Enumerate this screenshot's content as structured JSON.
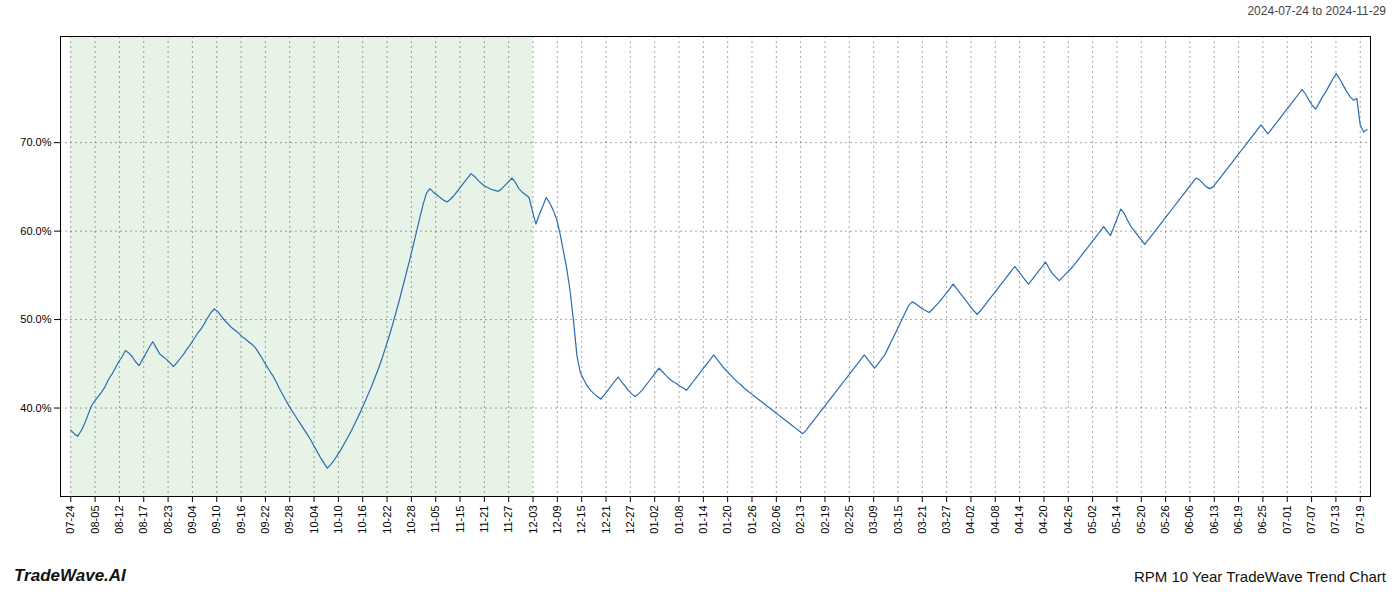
{
  "chart_data": {
    "type": "line",
    "title": "RPM 10 Year TradeWave Trend Chart",
    "subtitle": "2024-07-24 to 2024-11-29",
    "annotations": [
      {
        "text": "TradeWave.AI"
      }
    ],
    "color": "#2b6cb0",
    "grid": true,
    "xlim": [
      -3,
      380
    ],
    "xticks": [
      {
        "value": 0,
        "label": "07-24"
      },
      {
        "value": 7.1132,
        "label": "08-05"
      },
      {
        "value": 14.2264,
        "label": "08-12"
      },
      {
        "value": 21.3396,
        "label": "08-17"
      },
      {
        "value": 28.4528,
        "label": "08-23"
      },
      {
        "value": 35.566,
        "label": "09-04"
      },
      {
        "value": 42.6792,
        "label": "09-10"
      },
      {
        "value": 49.7925,
        "label": "09-16"
      },
      {
        "value": 56.9057,
        "label": "09-22"
      },
      {
        "value": 64.0189,
        "label": "09-28"
      },
      {
        "value": 71.1321,
        "label": "10-04"
      },
      {
        "value": 78.2453,
        "label": "10-10"
      },
      {
        "value": 85.3585,
        "label": "10-16"
      },
      {
        "value": 92.4717,
        "label": "10-22"
      },
      {
        "value": 99.5849,
        "label": "10-28"
      },
      {
        "value": 106.6981,
        "label": "11-05"
      },
      {
        "value": 113.8113,
        "label": "11-15"
      },
      {
        "value": 120.9245,
        "label": "11-21"
      },
      {
        "value": 128.0377,
        "label": "11-27"
      },
      {
        "value": 135.1509,
        "label": "12-03"
      },
      {
        "value": 142.2642,
        "label": "12-09"
      },
      {
        "value": 149.3774,
        "label": "12-15"
      },
      {
        "value": 156.4906,
        "label": "12-21"
      },
      {
        "value": 163.6038,
        "label": "12-27"
      },
      {
        "value": 170.717,
        "label": "01-02"
      },
      {
        "value": 177.8302,
        "label": "01-08"
      },
      {
        "value": 184.9434,
        "label": "01-14"
      },
      {
        "value": 192.0566,
        "label": "01-20"
      },
      {
        "value": 199.1698,
        "label": "01-26"
      },
      {
        "value": 206.283,
        "label": "02-06"
      },
      {
        "value": 213.3962,
        "label": "02-13"
      },
      {
        "value": 220.5094,
        "label": "02-19"
      },
      {
        "value": 227.6226,
        "label": "02-25"
      },
      {
        "value": 234.7358,
        "label": "03-09"
      },
      {
        "value": 241.8491,
        "label": "03-15"
      },
      {
        "value": 248.9623,
        "label": "03-21"
      },
      {
        "value": 256.0755,
        "label": "03-27"
      },
      {
        "value": 263.1887,
        "label": "04-02"
      },
      {
        "value": 270.3019,
        "label": "04-08"
      },
      {
        "value": 277.4151,
        "label": "04-14"
      },
      {
        "value": 284.5283,
        "label": "04-20"
      },
      {
        "value": 291.6415,
        "label": "04-26"
      },
      {
        "value": 298.7547,
        "label": "05-02"
      },
      {
        "value": 305.8679,
        "label": "05-14"
      },
      {
        "value": 312.9811,
        "label": "05-20"
      },
      {
        "value": 320.0943,
        "label": "05-26"
      },
      {
        "value": 327.2075,
        "label": "06-06"
      },
      {
        "value": 334.3208,
        "label": "06-13"
      },
      {
        "value": 341.434,
        "label": "06-19"
      },
      {
        "value": 348.5472,
        "label": "06-25"
      },
      {
        "value": 355.6604,
        "label": "07-01"
      },
      {
        "value": 362.7736,
        "label": "07-07"
      },
      {
        "value": 369.8868,
        "label": "07-13"
      },
      {
        "value": 377,
        "label": "07-19"
      }
    ],
    "ylim": [
      0.3,
      0.82
    ],
    "yticks": [
      {
        "value": 0.4,
        "label": "40.0%"
      },
      {
        "value": 0.5,
        "label": "50.0%"
      },
      {
        "value": 0.6,
        "label": "60.0%"
      },
      {
        "value": 0.7,
        "label": "70.0%"
      }
    ],
    "shaded_range": [
      0,
      135.1509
    ],
    "shade_color": "#d4ead4",
    "values": [
      0.375,
      0.371,
      0.368,
      0.374,
      0.382,
      0.392,
      0.402,
      0.408,
      0.413,
      0.418,
      0.424,
      0.432,
      0.438,
      0.445,
      0.452,
      0.458,
      0.465,
      0.462,
      0.458,
      0.452,
      0.448,
      0.455,
      0.462,
      0.469,
      0.475,
      0.468,
      0.461,
      0.458,
      0.455,
      0.451,
      0.447,
      0.451,
      0.456,
      0.461,
      0.467,
      0.472,
      0.478,
      0.484,
      0.489,
      0.495,
      0.502,
      0.508,
      0.512,
      0.509,
      0.504,
      0.499,
      0.495,
      0.491,
      0.488,
      0.485,
      0.481,
      0.478,
      0.475,
      0.472,
      0.468,
      0.462,
      0.456,
      0.449,
      0.443,
      0.437,
      0.43,
      0.422,
      0.415,
      0.408,
      0.401,
      0.395,
      0.389,
      0.383,
      0.377,
      0.371,
      0.365,
      0.358,
      0.351,
      0.344,
      0.338,
      0.332,
      0.336,
      0.341,
      0.347,
      0.353,
      0.36,
      0.367,
      0.374,
      0.382,
      0.39,
      0.398,
      0.407,
      0.416,
      0.425,
      0.435,
      0.445,
      0.456,
      0.468,
      0.48,
      0.493,
      0.507,
      0.521,
      0.536,
      0.551,
      0.566,
      0.582,
      0.598,
      0.614,
      0.63,
      0.643,
      0.648,
      0.644,
      0.641,
      0.638,
      0.635,
      0.633,
      0.636,
      0.64,
      0.645,
      0.65,
      0.655,
      0.66,
      0.665,
      0.662,
      0.658,
      0.654,
      0.651,
      0.649,
      0.647,
      0.646,
      0.645,
      0.648,
      0.652,
      0.656,
      0.66,
      0.655,
      0.648,
      0.644,
      0.641,
      0.638,
      0.622,
      0.608,
      0.619,
      0.628,
      0.638,
      0.632,
      0.624,
      0.614,
      0.598,
      0.578,
      0.558,
      0.532,
      0.498,
      0.459,
      0.44,
      0.432,
      0.425,
      0.42,
      0.416,
      0.413,
      0.41,
      0.415,
      0.42,
      0.425,
      0.43,
      0.435,
      0.43,
      0.425,
      0.42,
      0.416,
      0.413,
      0.416,
      0.42,
      0.425,
      0.43,
      0.435,
      0.44,
      0.445,
      0.441,
      0.437,
      0.433,
      0.43,
      0.428,
      0.425,
      0.423,
      0.42,
      0.425,
      0.43,
      0.435,
      0.44,
      0.445,
      0.45,
      0.455,
      0.46,
      0.455,
      0.45,
      0.445,
      0.441,
      0.437,
      0.433,
      0.429,
      0.426,
      0.422,
      0.419,
      0.416,
      0.413,
      0.41,
      0.407,
      0.404,
      0.401,
      0.398,
      0.395,
      0.392,
      0.389,
      0.386,
      0.383,
      0.38,
      0.377,
      0.374,
      0.371,
      0.375,
      0.38,
      0.385,
      0.39,
      0.395,
      0.4,
      0.405,
      0.41,
      0.415,
      0.42,
      0.425,
      0.43,
      0.435,
      0.44,
      0.445,
      0.45,
      0.455,
      0.46,
      0.455,
      0.45,
      0.445,
      0.45,
      0.455,
      0.46,
      0.468,
      0.476,
      0.484,
      0.492,
      0.5,
      0.508,
      0.516,
      0.52,
      0.518,
      0.515,
      0.512,
      0.51,
      0.508,
      0.512,
      0.516,
      0.52,
      0.525,
      0.53,
      0.535,
      0.54,
      0.535,
      0.53,
      0.525,
      0.52,
      0.515,
      0.51,
      0.506,
      0.51,
      0.515,
      0.52,
      0.525,
      0.53,
      0.535,
      0.54,
      0.545,
      0.55,
      0.555,
      0.56,
      0.555,
      0.55,
      0.545,
      0.54,
      0.545,
      0.55,
      0.555,
      0.56,
      0.565,
      0.558,
      0.552,
      0.548,
      0.544,
      0.548,
      0.552,
      0.556,
      0.56,
      0.565,
      0.57,
      0.575,
      0.58,
      0.585,
      0.59,
      0.595,
      0.6,
      0.605,
      0.6,
      0.595,
      0.605,
      0.615,
      0.625,
      0.62,
      0.612,
      0.605,
      0.6,
      0.595,
      0.59,
      0.585,
      0.59,
      0.595,
      0.6,
      0.605,
      0.61,
      0.615,
      0.62,
      0.625,
      0.63,
      0.635,
      0.64,
      0.645,
      0.65,
      0.655,
      0.66,
      0.658,
      0.654,
      0.65,
      0.648,
      0.65,
      0.655,
      0.66,
      0.665,
      0.67,
      0.675,
      0.68,
      0.685,
      0.69,
      0.695,
      0.7,
      0.705,
      0.71,
      0.715,
      0.72,
      0.715,
      0.71,
      0.715,
      0.72,
      0.725,
      0.73,
      0.735,
      0.74,
      0.745,
      0.75,
      0.755,
      0.76,
      0.755,
      0.748,
      0.742,
      0.738,
      0.745,
      0.752,
      0.758,
      0.765,
      0.772,
      0.778,
      0.772,
      0.765,
      0.758,
      0.752,
      0.748,
      0.75,
      0.72,
      0.712,
      0.715
    ]
  }
}
